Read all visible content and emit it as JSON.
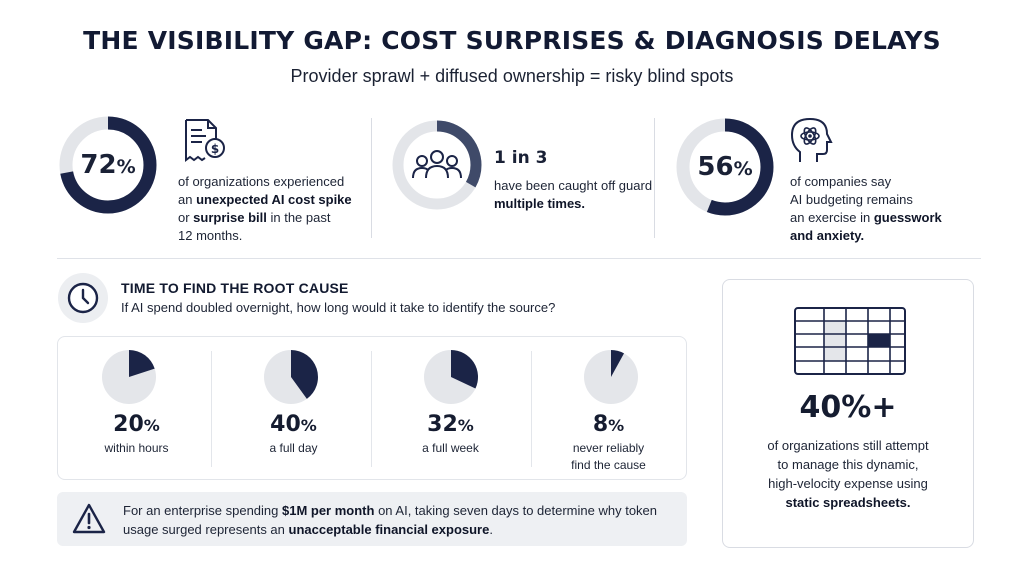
{
  "header": {
    "title": "THE VISIBILITY GAP: COST SURPRISES & DIAGNOSIS DELAYS",
    "subtitle": "Provider sprawl + diffused ownership = risky blind spots"
  },
  "stats": [
    {
      "value": "72",
      "unit": "%",
      "fraction": 0.72,
      "icon": "invoice-dollar-icon",
      "text": [
        {
          "t": "of organizations experienced",
          "b": false
        },
        {
          "t": "an ",
          "b": false
        },
        {
          "t": "unexpected AI cost spike",
          "b": true
        },
        {
          "t": "or ",
          "b": false
        },
        {
          "t": "surprise bill",
          "b": true
        },
        {
          "t": " in the past",
          "b": false
        },
        {
          "t": "12 months.",
          "b": false
        }
      ]
    },
    {
      "value": "1 in 3",
      "fraction": 0.3333,
      "icon": "people-group-icon",
      "line1": "have been caught off guard",
      "line2": "multiple times."
    },
    {
      "value": "56",
      "unit": "%",
      "fraction": 0.56,
      "icon": "head-brain-icon",
      "line1": "of companies say",
      "line2": "AI budgeting remains",
      "line3a": "an exercise in ",
      "line3b": "guesswork",
      "line4a": "and anxiety.",
      "line4b": ""
    }
  ],
  "root_cause": {
    "title": "TIME TO FIND THE ROOT CAUSE",
    "question": "If AI spend doubled overnight, how long would it take to identify the source?",
    "icon": "clock-icon"
  },
  "chart_data": {
    "type": "pie",
    "categories": [
      "within hours",
      "a full day",
      "a full week",
      "never reliably find the cause"
    ],
    "values": [
      20,
      40,
      32,
      8
    ],
    "unit": "%"
  },
  "pies": [
    {
      "value": "20",
      "unit": "%",
      "label1": "within hours",
      "label2": ""
    },
    {
      "value": "40",
      "unit": "%",
      "label1": "a full day",
      "label2": ""
    },
    {
      "value": "32",
      "unit": "%",
      "label1": "a full week",
      "label2": ""
    },
    {
      "value": "8",
      "unit": "%",
      "label1": "never reliably",
      "label2": "find the cause"
    }
  ],
  "warning": {
    "icon": "warning-triangle-icon",
    "p1": "For an enterprise spending ",
    "b1": "$1M per month",
    "p2": " on AI, taking seven days to determine why token usage surged represents an ",
    "b2": "unacceptable financial exposure",
    "p3": "."
  },
  "spreadsheet_card": {
    "icon": "spreadsheet-grid-icon",
    "value": "40%+",
    "line1": "of organizations still attempt",
    "line2": "to manage this dynamic,",
    "line3": "high-velocity expense using",
    "line4": "static spreadsheets."
  },
  "colors": {
    "navy": "#1b2447",
    "ring_track": "#e3e5e9",
    "pie_track": "#e4e6ea",
    "text": "#1d2435"
  }
}
